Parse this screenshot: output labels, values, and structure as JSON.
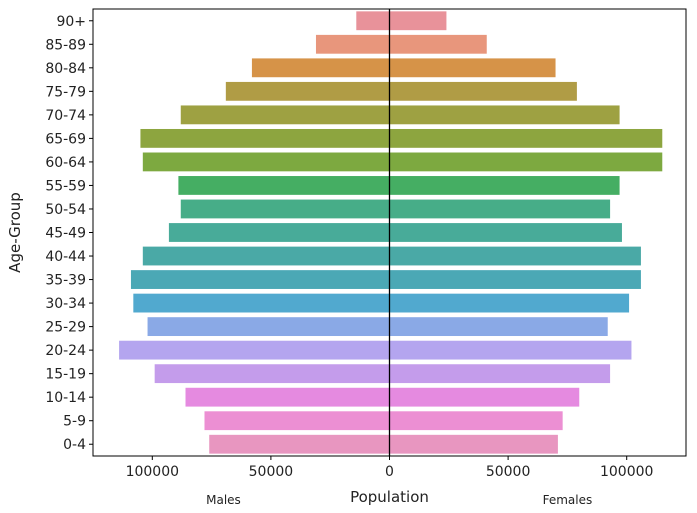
{
  "chart_data": {
    "type": "bar",
    "orientation": "horizontal",
    "title": "",
    "xlabel": "Population",
    "ylabel": "Age-Group",
    "categories": [
      "90+",
      "85-89",
      "80-84",
      "75-79",
      "70-74",
      "65-69",
      "60-64",
      "55-59",
      "50-54",
      "45-49",
      "40-44",
      "35-39",
      "30-34",
      "25-29",
      "20-24",
      "15-19",
      "10-14",
      "5-9",
      "0-4"
    ],
    "series": [
      {
        "direction": "left",
        "values": [
          14000,
          31000,
          58000,
          69000,
          88000,
          105000,
          104000,
          89000,
          88000,
          93000,
          104000,
          109000,
          108000,
          102000,
          114000,
          99000,
          86000,
          78000,
          76000
        ]
      },
      {
        "direction": "right",
        "values": [
          24000,
          41000,
          70000,
          79000,
          97000,
          115000,
          115000,
          97000,
          93000,
          98000,
          106000,
          106000,
          101000,
          92000,
          102000,
          93000,
          80000,
          73000,
          71000
        ]
      }
    ],
    "bar_colors": [
      "#e8929a",
      "#e8967c",
      "#d69348",
      "#b09c45",
      "#9ea142",
      "#8da53f",
      "#7da940",
      "#45ae63",
      "#47ad88",
      "#48ab99",
      "#4aa9a6",
      "#4ba8b5",
      "#51a9cf",
      "#8aa9e6",
      "#b4a5ef",
      "#c49ceb",
      "#e58ae0",
      "#ec8fd3",
      "#e896c0"
    ],
    "xlim": [
      -125000,
      125000
    ],
    "xticks": [
      {
        "value": -100000,
        "label": "100000"
      },
      {
        "value": -50000,
        "label": "50000"
      },
      {
        "value": 0,
        "label": "0"
      },
      {
        "value": 50000,
        "label": "50000"
      },
      {
        "value": 100000,
        "label": "100000"
      }
    ],
    "annotations": [
      {
        "text": "Males",
        "x": -70000
      },
      {
        "text": "Females",
        "x": 75000
      }
    ],
    "grid": false,
    "legend": "none"
  }
}
